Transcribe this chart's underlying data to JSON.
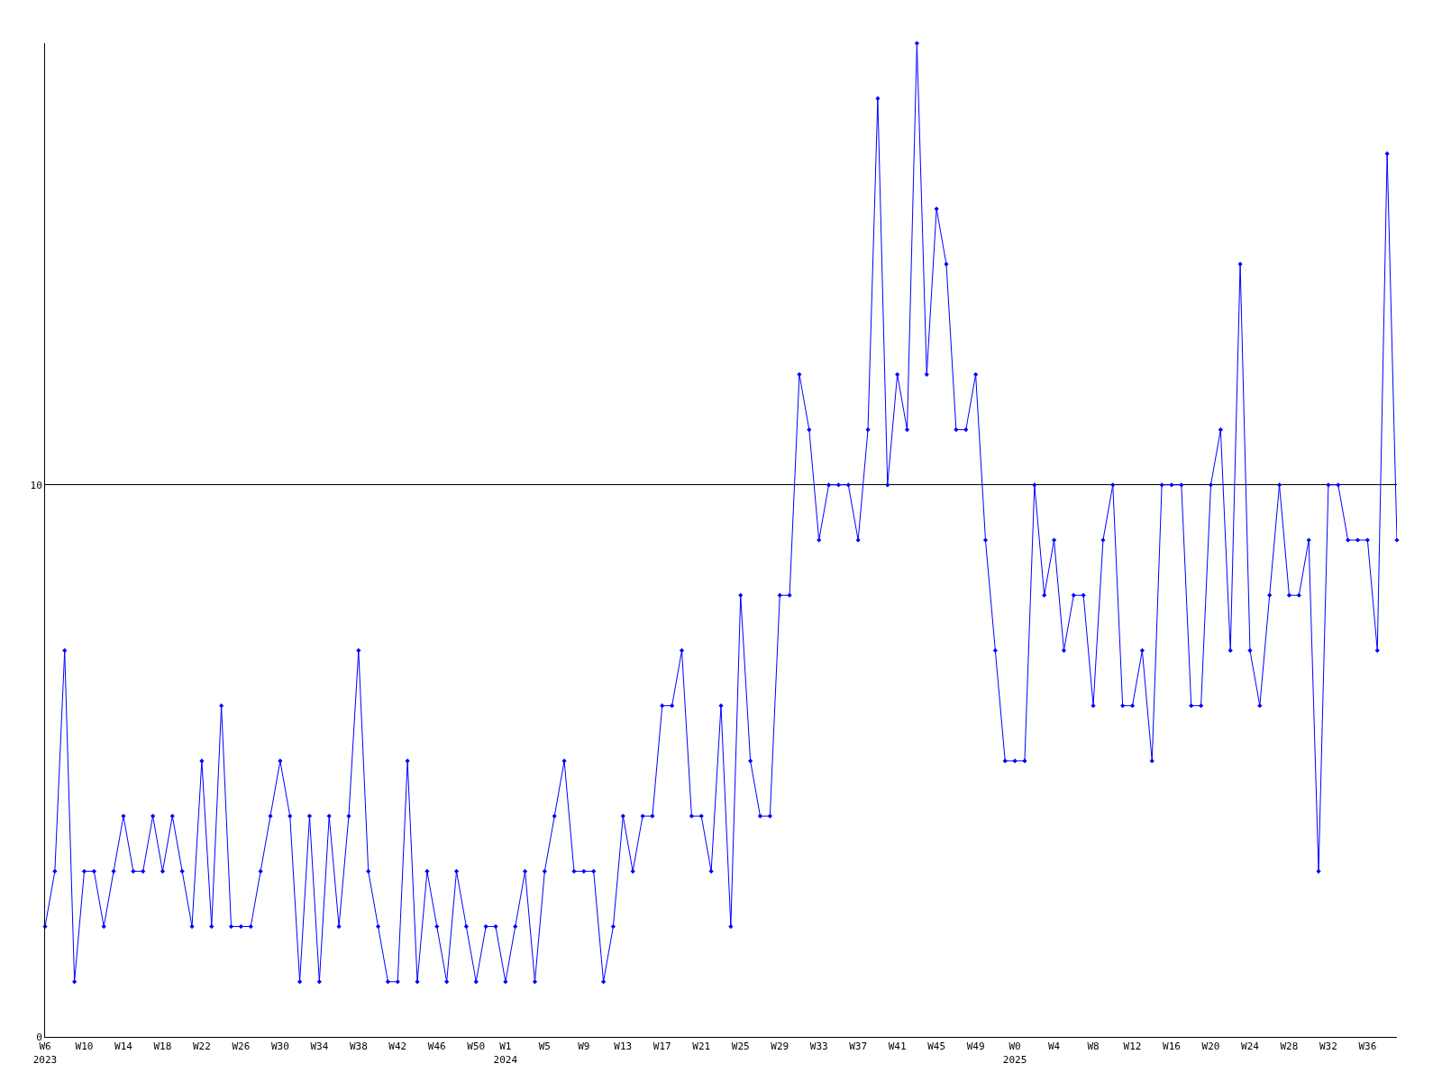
{
  "chart_data": {
    "type": "line",
    "categories": [
      "W6\n2023",
      null,
      null,
      null,
      "W10",
      null,
      null,
      null,
      "W14",
      null,
      null,
      null,
      "W18",
      null,
      null,
      null,
      "W22",
      null,
      null,
      null,
      "W26",
      null,
      null,
      null,
      "W30",
      null,
      null,
      null,
      "W34",
      null,
      null,
      null,
      "W38",
      null,
      null,
      null,
      "W42",
      null,
      null,
      null,
      "W46",
      null,
      null,
      null,
      "W50",
      null,
      null,
      "W1\n2024",
      null,
      null,
      null,
      "W5",
      null,
      null,
      null,
      "W9",
      null,
      null,
      null,
      "W13",
      null,
      null,
      null,
      "W17",
      null,
      null,
      null,
      "W21",
      null,
      null,
      null,
      "W25",
      null,
      null,
      null,
      "W29",
      null,
      null,
      null,
      "W33",
      null,
      null,
      null,
      "W37",
      null,
      null,
      null,
      "W41",
      null,
      null,
      null,
      "W45",
      null,
      null,
      null,
      "W49",
      null,
      null,
      null,
      "W0\n2025",
      null,
      null,
      null,
      "W4",
      null,
      null,
      null,
      "W8",
      null,
      null,
      null,
      "W12",
      null,
      null,
      null,
      "W16",
      null,
      null,
      null,
      "W20",
      null,
      null,
      null,
      "W24",
      null,
      null,
      null,
      "W28",
      null,
      null,
      null,
      "W32",
      null,
      null,
      null,
      "W36",
      null,
      null,
      null
    ],
    "series": [
      {
        "color": "#0000ff",
        "values": [
          2,
          3,
          7,
          1,
          3,
          3,
          2,
          3,
          4,
          3,
          3,
          4,
          3,
          4,
          3,
          2,
          5,
          2,
          6,
          2,
          2,
          2,
          3,
          4,
          5,
          4,
          1,
          4,
          1,
          4,
          2,
          4,
          7,
          3,
          2,
          1,
          1,
          5,
          1,
          3,
          2,
          1,
          3,
          2,
          1,
          2,
          2,
          1,
          2,
          3,
          1,
          3,
          4,
          5,
          3,
          3,
          3,
          1,
          2,
          4,
          3,
          4,
          4,
          6,
          6,
          7,
          4,
          4,
          3,
          6,
          2,
          8,
          5,
          4,
          4,
          8,
          8,
          12,
          11,
          9,
          10,
          10,
          10,
          9,
          11,
          17,
          10,
          12,
          11,
          18,
          12,
          15,
          14,
          11,
          11,
          12,
          9,
          7,
          5,
          5,
          5,
          10,
          8,
          9,
          7,
          8,
          8,
          6,
          9,
          10,
          6,
          6,
          7,
          5,
          10,
          10,
          10,
          6,
          6,
          10,
          11,
          7,
          14,
          7,
          6,
          8,
          10,
          8,
          8,
          9,
          3,
          10,
          10,
          9,
          9,
          9,
          7,
          16,
          9
        ]
      }
    ],
    "ylim": [
      0,
      18
    ],
    "yticks": [
      0,
      10
    ],
    "grid": "y",
    "marker": "diamond",
    "line_style": "solid",
    "legend": false
  }
}
